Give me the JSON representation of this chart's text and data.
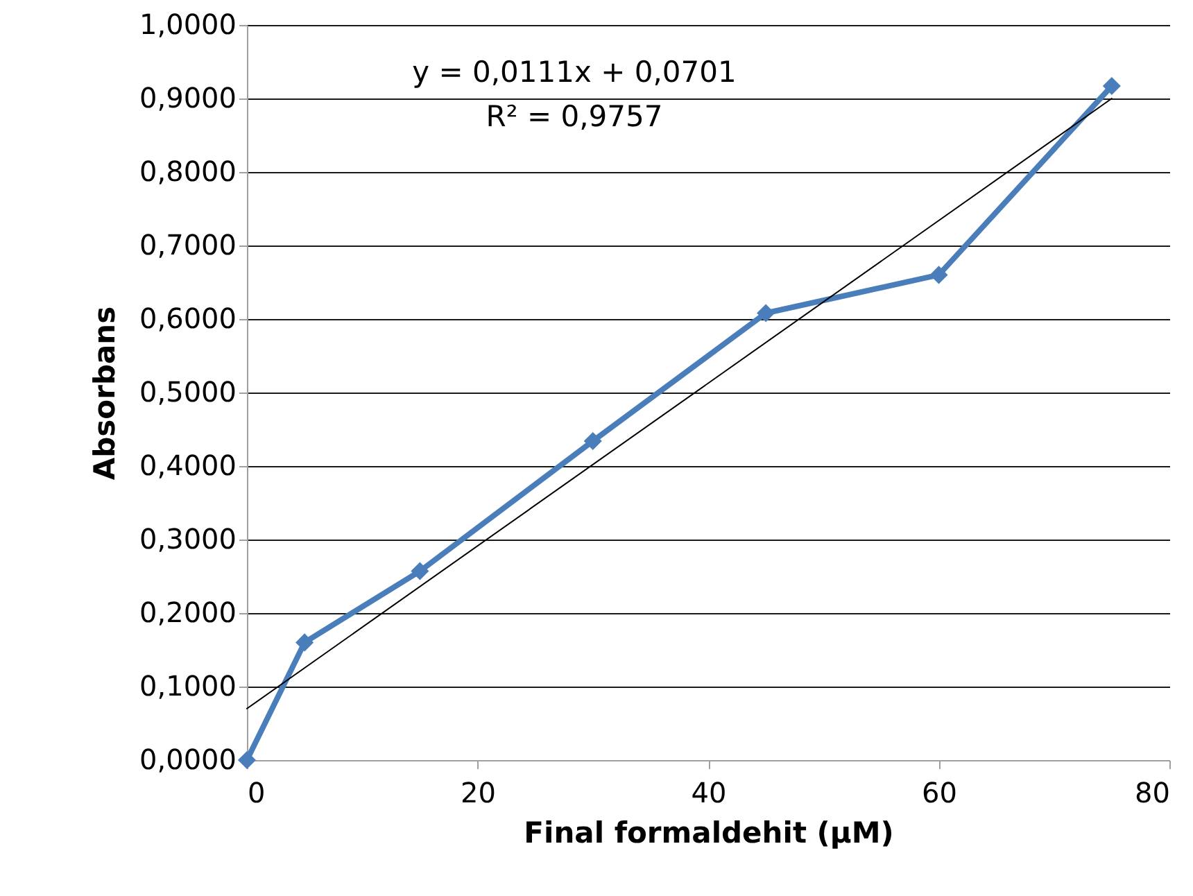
{
  "chart_data": {
    "type": "line",
    "xlabel": "Final formaldehit (µM)",
    "ylabel": "Absorbans",
    "annotations": [
      "y = 0,0111x + 0,0701",
      "R² = 0,9757"
    ],
    "x": [
      0,
      5,
      15,
      30,
      45,
      60,
      75
    ],
    "series": [
      {
        "color": "#4a7ebb",
        "values": [
          0,
          0.16,
          0.257,
          0.434,
          0.608,
          0.66,
          0.917
        ]
      },
      {
        "type": "line",
        "color": "#000000",
        "x": [
          0,
          75
        ],
        "values": [
          0.07,
          0.9
        ],
        "marker": "none"
      }
    ],
    "marker": "diamond",
    "line_style": "solid",
    "grid": "y",
    "xlim": [
      0,
      80
    ],
    "xticks": [
      0,
      20,
      40,
      60,
      80
    ],
    "ylim": [
      0,
      1
    ],
    "yticks": [
      {
        "value": 0,
        "label": "0,0000"
      },
      {
        "value": 0.1,
        "label": "0,1000"
      },
      {
        "value": 0.2,
        "label": "0,2000"
      },
      {
        "value": 0.3,
        "label": "0,3000"
      },
      {
        "value": 0.4,
        "label": "0,4000"
      },
      {
        "value": 0.5,
        "label": "0,5000"
      },
      {
        "value": 0.6,
        "label": "0,6000"
      },
      {
        "value": 0.7,
        "label": "0,7000"
      },
      {
        "value": 0.8,
        "label": "0,8000"
      },
      {
        "value": 0.9,
        "label": "0,9000"
      },
      {
        "value": 1,
        "label": "1,0000"
      }
    ]
  }
}
